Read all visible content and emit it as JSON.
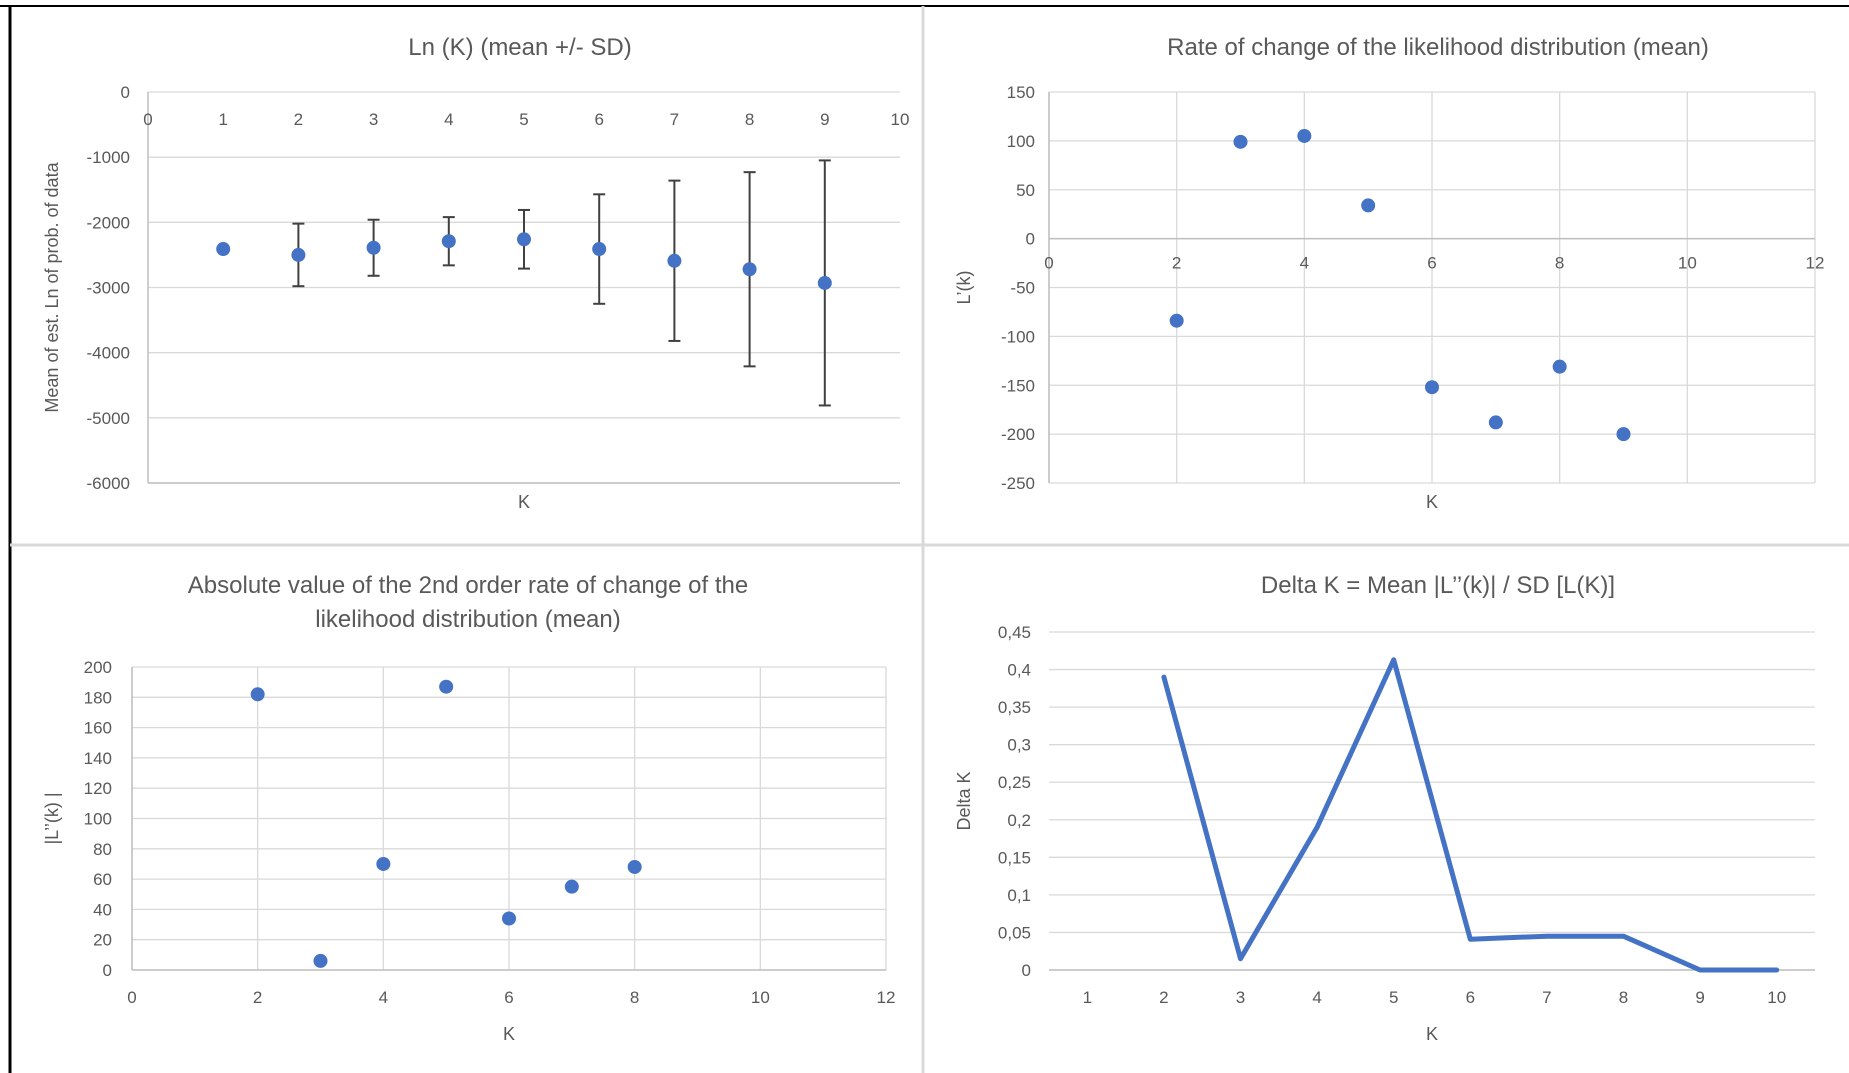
{
  "chart_data": [
    {
      "type": "scatter",
      "title": [
        "Ln (K)  (mean +/- SD)"
      ],
      "xlabel": "K",
      "ylabel": "Mean of est. Ln of prob. of data",
      "xlim": [
        0,
        10
      ],
      "ylim": [
        -6000,
        0
      ],
      "x_ticks": [
        0,
        1,
        2,
        3,
        4,
        5,
        6,
        7,
        8,
        9,
        10
      ],
      "y_ticks": [
        0,
        -1000,
        -2000,
        -3000,
        -4000,
        -5000,
        -6000
      ],
      "x_tick_labels": [
        "0",
        "1",
        "2",
        "3",
        "4",
        "5",
        "6",
        "7",
        "8",
        "9",
        "10"
      ],
      "y_tick_labels": [
        "0",
        "-1000",
        "-2000",
        "-3000",
        "-4000",
        "-5000",
        "-6000"
      ],
      "grid": "horizontal",
      "series": [
        {
          "x": [
            1,
            2,
            3,
            4,
            5,
            6,
            7,
            8,
            9
          ],
          "values": [
            -2410,
            -2500,
            -2390,
            -2290,
            -2260,
            -2410,
            -2590,
            -2720,
            -2930
          ],
          "error_sd": [
            0,
            480,
            430,
            370,
            450,
            840,
            1230,
            1490,
            1880
          ],
          "color": "#4472c4"
        }
      ]
    },
    {
      "type": "scatter",
      "title": [
        "Rate of change of the  likelihood distribution (mean)"
      ],
      "xlabel": "K",
      "ylabel": "L’(k)",
      "xlim": [
        0,
        12
      ],
      "ylim": [
        -250,
        150
      ],
      "x_ticks": [
        0,
        2,
        4,
        6,
        8,
        10,
        12
      ],
      "y_ticks": [
        150,
        100,
        50,
        0,
        -50,
        -100,
        -150,
        -200,
        -250
      ],
      "x_tick_labels": [
        "0",
        "2",
        "4",
        "6",
        "8",
        "10",
        "12"
      ],
      "y_tick_labels": [
        "150",
        "100",
        "50",
        "0",
        "-50",
        "-100",
        "-150",
        "-200",
        "-250"
      ],
      "grid": "both",
      "series": [
        {
          "x": [
            2,
            3,
            4,
            5,
            6,
            7,
            8,
            9
          ],
          "values": [
            -84,
            99,
            105,
            34,
            -152,
            -188,
            -131,
            -200
          ],
          "color": "#4472c4"
        }
      ]
    },
    {
      "type": "scatter",
      "title": [
        "Absolute value of the 2nd order rate of change of the",
        "likelihood distribution (mean)"
      ],
      "xlabel": "K",
      "ylabel": "|L’’(k) |",
      "xlim": [
        0,
        12
      ],
      "ylim": [
        0,
        200
      ],
      "x_ticks": [
        0,
        2,
        4,
        6,
        8,
        10,
        12
      ],
      "y_ticks": [
        0,
        20,
        40,
        60,
        80,
        100,
        120,
        140,
        160,
        180,
        200
      ],
      "x_tick_labels": [
        "0",
        "2",
        "4",
        "6",
        "8",
        "10",
        "12"
      ],
      "y_tick_labels": [
        "0",
        "20",
        "40",
        "60",
        "80",
        "100",
        "120",
        "140",
        "160",
        "180",
        "200"
      ],
      "grid": "both",
      "series": [
        {
          "x": [
            2,
            3,
            4,
            5,
            6,
            7,
            8
          ],
          "values": [
            182,
            6,
            70,
            187,
            34,
            55,
            68
          ],
          "color": "#4472c4"
        }
      ]
    },
    {
      "type": "line",
      "title": [
        "Delta K = Mean |L’’(k)|  / SD [L(K)]"
      ],
      "xlabel": "K",
      "ylabel": "Delta K",
      "ylim": [
        0,
        0.45
      ],
      "categories": [
        "1",
        "2",
        "3",
        "4",
        "5",
        "6",
        "7",
        "8",
        "9",
        "10"
      ],
      "y_ticks": [
        0,
        0.05,
        0.1,
        0.15,
        0.2,
        0.25,
        0.3,
        0.35,
        0.4,
        0.45
      ],
      "y_tick_labels": [
        "0",
        "0,05",
        "0,1",
        "0,15",
        "0,2",
        "0,25",
        "0,3",
        "0,35",
        "0,4",
        "0,45"
      ],
      "grid": "horizontal",
      "series": [
        {
          "values": [
            null,
            0.39,
            0.015,
            0.19,
            0.413,
            0.041,
            0.045,
            0.045,
            0,
            0
          ],
          "color": "#4472c4"
        }
      ]
    }
  ]
}
